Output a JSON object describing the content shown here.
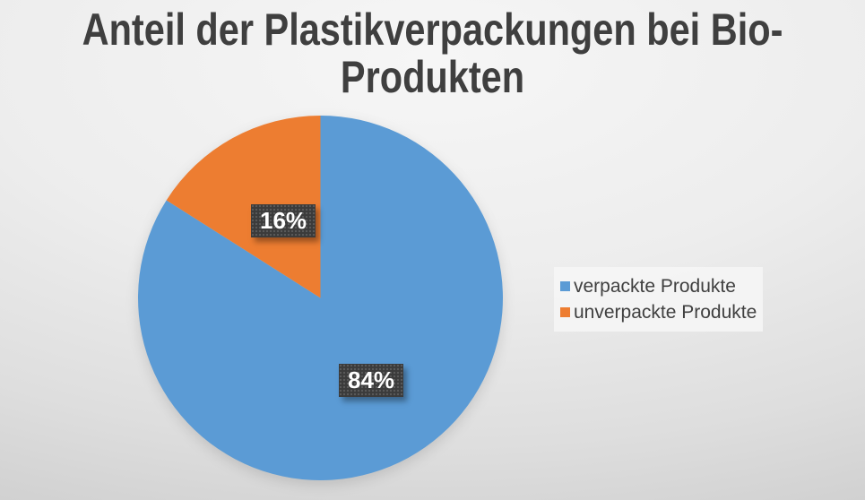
{
  "title_lines": [
    "Anteil der Plastikverpackungen bei Bio-",
    "Produkten"
  ],
  "chart_data": {
    "type": "pie",
    "title": "Anteil der Plastikverpackungen bei Bio-Produkten",
    "slices": [
      {
        "name": "verpackte Produkte",
        "value": 84,
        "display": "84%",
        "color": "#5B9BD5"
      },
      {
        "name": "unverpackte Produkte",
        "value": 16,
        "display": "16%",
        "color": "#ED7D31"
      }
    ],
    "start_angle_deg": 0,
    "direction": "clockwise",
    "legend_position": "right",
    "data_label_style": {
      "background": "#3B3B3B",
      "text_color": "#FFFFFF"
    },
    "title_color": "#3F3F3F",
    "legend_text_color": "#404040"
  }
}
